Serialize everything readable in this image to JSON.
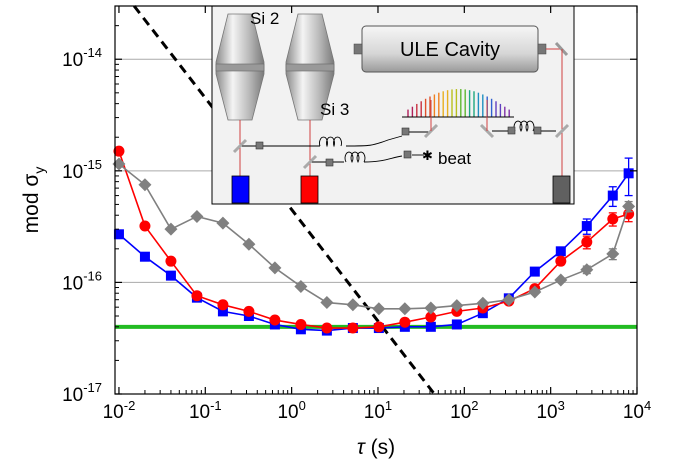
{
  "chart_data": {
    "type": "scatter",
    "xlabel": "τ (s)",
    "ylabel": "mod σy",
    "xscale": "log",
    "yscale": "log",
    "xlim": [
      0.009,
      10000
    ],
    "ylim": [
      1e-17,
      3e-14
    ],
    "grid": "horizontal",
    "x_ticks": [
      {
        "value": 0.01,
        "base": "10",
        "exp": "-2"
      },
      {
        "value": 0.1,
        "base": "10",
        "exp": "-1"
      },
      {
        "value": 1,
        "base": "10",
        "exp": "0"
      },
      {
        "value": 10,
        "base": "10",
        "exp": "1"
      },
      {
        "value": 100,
        "base": "10",
        "exp": "2"
      },
      {
        "value": 1000,
        "base": "10",
        "exp": "3"
      },
      {
        "value": 10000,
        "base": "10",
        "exp": "4"
      }
    ],
    "y_ticks": [
      {
        "value": 1e-17,
        "base": "10",
        "exp": "-17"
      },
      {
        "value": 1e-16,
        "base": "10",
        "exp": "-16"
      },
      {
        "value": 1e-15,
        "base": "10",
        "exp": "-15"
      },
      {
        "value": 1e-14,
        "base": "10",
        "exp": "-14"
      }
    ],
    "series": [
      {
        "color": "#0000ff",
        "marker": "square",
        "x": [
          0.01,
          0.02,
          0.04,
          0.08,
          0.16,
          0.32,
          0.64,
          1.28,
          2.56,
          5.12,
          10.24,
          20.48,
          40.96,
          81.92,
          163.84,
          327.68,
          655.36,
          1310.72,
          2621.44,
          5242.88,
          8000
        ],
        "y": [
          2.7e-16,
          1.7e-16,
          1.15e-16,
          7.3e-17,
          5.5e-17,
          5e-17,
          4.2e-17,
          3.8e-17,
          3.7e-17,
          3.9e-17,
          3.9e-17,
          4e-17,
          4e-17,
          4.2e-17,
          5.3e-17,
          7.2e-17,
          1.25e-16,
          1.9e-16,
          3.2e-16,
          6e-16,
          9.5e-16
        ],
        "yerr": [
          0,
          0,
          0,
          0,
          0,
          0,
          0,
          0,
          0,
          0,
          0,
          0,
          0,
          0,
          0,
          0,
          1e-17,
          1.5e-17,
          5e-17,
          1.2e-16,
          3.5e-16
        ]
      },
      {
        "color": "#ff0000",
        "marker": "circle",
        "x": [
          0.01,
          0.02,
          0.04,
          0.08,
          0.16,
          0.32,
          0.64,
          1.28,
          2.56,
          5.12,
          10.24,
          20.48,
          40.96,
          81.92,
          163.84,
          327.68,
          655.36,
          1310.72,
          2621.44,
          5242.88,
          8000
        ],
        "y": [
          1.5e-15,
          3.2e-16,
          1.55e-16,
          7.6e-17,
          6.3e-17,
          5.5e-17,
          4.6e-17,
          4.2e-17,
          3.9e-17,
          3.9e-17,
          4e-17,
          4.4e-17,
          4.9e-17,
          5.5e-17,
          5.9e-17,
          6.8e-17,
          8.8e-17,
          1.55e-16,
          2.3e-16,
          3.7e-16,
          4.1e-16
        ],
        "yerr": [
          0,
          0,
          0,
          0,
          0,
          0,
          0,
          0,
          0,
          0,
          0,
          0,
          0,
          0,
          0,
          0,
          0,
          1e-17,
          3e-17,
          5e-17,
          6e-17
        ]
      },
      {
        "color": "#808080",
        "marker": "diamond",
        "x": [
          0.01,
          0.02,
          0.04,
          0.08,
          0.16,
          0.32,
          0.64,
          1.28,
          2.56,
          5.12,
          10.24,
          20.48,
          40.96,
          81.92,
          163.84,
          327.68,
          655.36,
          1310.72,
          2621.44,
          5242.88,
          8000
        ],
        "y": [
          1.15e-15,
          7.5e-16,
          3e-16,
          3.9e-16,
          3.4e-16,
          2.2e-16,
          1.35e-16,
          9.2e-17,
          6.6e-17,
          6.3e-17,
          5.8e-17,
          5.8e-17,
          5.9e-17,
          6.2e-17,
          6.5e-17,
          7e-17,
          8.2e-17,
          1.05e-16,
          1.3e-16,
          1.8e-16,
          4.8e-16
        ],
        "yerr": [
          0,
          0,
          0,
          0,
          0,
          0,
          0,
          0,
          0,
          0,
          0,
          0,
          0,
          0,
          0,
          0,
          0,
          0,
          1e-17,
          2e-17,
          5e-17
        ]
      }
    ],
    "reference_lines": [
      {
        "style": "solid",
        "color": "#22bb22",
        "x": [
          0.009,
          10000
        ],
        "y": [
          4e-17,
          4e-17
        ]
      },
      {
        "style": "dashed",
        "color": "#000000",
        "x": [
          0.015,
          45
        ],
        "y": [
          3e-14,
          1e-17
        ]
      }
    ]
  },
  "inset": {
    "labels": {
      "si2": "Si 2",
      "si3": "Si 3",
      "cavity": "ULE Cavity",
      "beat": "beat"
    },
    "colors": {
      "si2_detector": "#0000ff",
      "si3_detector": "#ff0000",
      "cavity_detector": "#606060",
      "fiber": "#d04040"
    }
  }
}
